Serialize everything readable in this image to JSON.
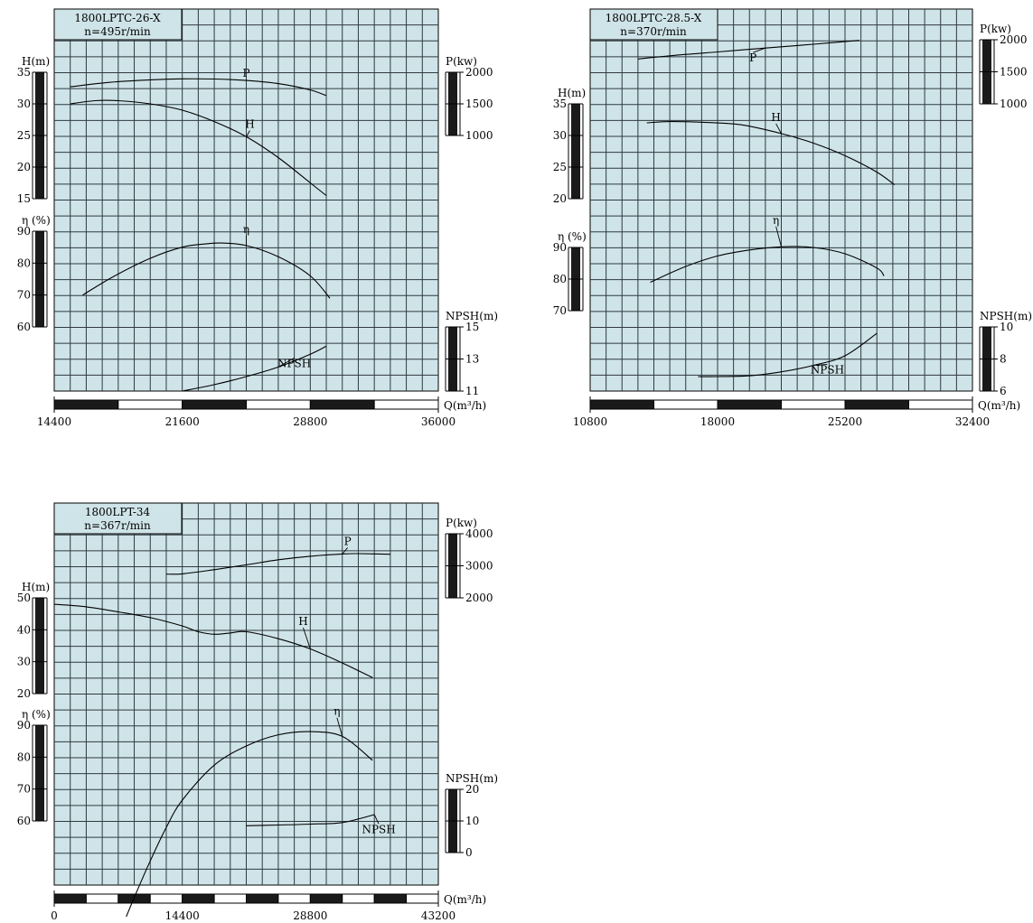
{
  "chart_data": [
    {
      "type": "line",
      "id": "c1",
      "title": "1800LPTC-26-X",
      "subtitle": "n=495r/min",
      "xlabel": "Q(m³/h)",
      "xlim": [
        14400,
        36000
      ],
      "xticks": [
        14400,
        21600,
        28800,
        36000
      ],
      "axes": {
        "H": {
          "label": "H(m)",
          "range": [
            15,
            35
          ],
          "ticks": [
            15,
            20,
            25,
            30,
            35
          ],
          "side": "left"
        },
        "eta": {
          "label": "η (%)",
          "range": [
            60,
            90
          ],
          "ticks": [
            60,
            70,
            80,
            90
          ],
          "side": "left"
        },
        "P": {
          "label": "P(kw)",
          "range": [
            1000,
            2000
          ],
          "ticks": [
            1000,
            1500,
            2000
          ],
          "side": "right"
        },
        "NPSH": {
          "label": "NPSH(m)",
          "range": [
            11,
            15
          ],
          "ticks": [
            11,
            13,
            15
          ],
          "side": "right"
        }
      },
      "series": [
        {
          "name": "P",
          "axis": "P",
          "x": [
            15300,
            17500,
            19800,
            21600,
            23400,
            25200,
            27000,
            28800,
            29700
          ],
          "y": [
            1770,
            1840,
            1880,
            1895,
            1893,
            1870,
            1820,
            1720,
            1630
          ],
          "label_at": [
            25200,
            1930
          ]
        },
        {
          "name": "H",
          "axis": "H",
          "x": [
            15300,
            16700,
            18000,
            19800,
            21600,
            23400,
            25200,
            27000,
            28800,
            29700
          ],
          "y": [
            30,
            30.5,
            30.5,
            30,
            29,
            27.2,
            24.8,
            21.5,
            17.5,
            15.5
          ],
          "label_at": [
            25400,
            26.2
          ]
        },
        {
          "name": "η",
          "axis": "eta",
          "x": [
            16000,
            17800,
            19800,
            21600,
            22900,
            23800,
            25200,
            27000,
            28800,
            29900
          ],
          "y": [
            70,
            76,
            81.5,
            85,
            86,
            86.3,
            85.5,
            82,
            76,
            69
          ],
          "label_at": [
            25200,
            89.4
          ]
        },
        {
          "name": "NPSH",
          "axis": "NPSH",
          "x": [
            21600,
            23400,
            25200,
            27000,
            28800,
            29700
          ],
          "y": [
            11,
            11.4,
            11.9,
            12.5,
            13.3,
            13.8
          ],
          "label_at": [
            27900,
            12.5
          ]
        }
      ]
    },
    {
      "type": "line",
      "id": "c2",
      "title": "1800LPTC-28.5-X",
      "subtitle": "n=370r/min",
      "xlabel": "Q(m³/h)",
      "xlim": [
        10800,
        32400
      ],
      "xticks": [
        10800,
        18000,
        25200,
        32400
      ],
      "axes": {
        "H": {
          "label": "H(m)",
          "range": [
            20,
            35
          ],
          "ticks": [
            20,
            25,
            30,
            35
          ],
          "side": "left"
        },
        "eta": {
          "label": "η (%)",
          "range": [
            70,
            90
          ],
          "ticks": [
            70,
            80,
            90
          ],
          "side": "left"
        },
        "P": {
          "label": "P(kw)",
          "range": [
            1000,
            2000
          ],
          "ticks": [
            1000,
            1500,
            2000
          ],
          "side": "right"
        },
        "NPSH": {
          "label": "NPSH(m)",
          "range": [
            6,
            10
          ],
          "ticks": [
            6,
            8,
            10
          ],
          "side": "right"
        }
      },
      "series": [
        {
          "name": "P",
          "axis": "P",
          "x": [
            13500,
            15300,
            18000,
            20700,
            23400,
            26000
          ],
          "y": [
            1700,
            1750,
            1810,
            1870,
            1930,
            1990
          ],
          "label_at": [
            20000,
            1660
          ]
        },
        {
          "name": "H",
          "axis": "H",
          "x": [
            14000,
            15300,
            17100,
            19300,
            21600,
            23400,
            25200,
            27000,
            28000
          ],
          "y": [
            32,
            32.2,
            32.1,
            31.7,
            30.3,
            28.8,
            26.8,
            24.2,
            22.2
          ],
          "label_at": [
            21300,
            32.3
          ]
        },
        {
          "name": "η",
          "axis": "eta",
          "x": [
            14200,
            16200,
            18000,
            19800,
            21600,
            23400,
            25200,
            27000,
            27400
          ],
          "y": [
            79,
            84,
            87.3,
            89.2,
            90.2,
            90,
            88,
            83.5,
            81
          ],
          "label_at": [
            21300,
            97.5
          ]
        },
        {
          "name": "NPSH",
          "axis": "NPSH",
          "x": [
            16900,
            18000,
            19800,
            21600,
            23400,
            25200,
            27000
          ],
          "y": [
            6.9,
            6.9,
            6.95,
            7.2,
            7.6,
            8.2,
            9.6
          ],
          "label_at": [
            24200,
            7.1
          ]
        }
      ]
    },
    {
      "type": "line",
      "id": "c3",
      "title": "1800LPT-34",
      "subtitle": "n=367r/min",
      "xlabel": "Q(m³/h)",
      "xlim": [
        0,
        43200
      ],
      "xticks": [
        0,
        14400,
        28800,
        43200
      ],
      "axes": {
        "H": {
          "label": "H(m)",
          "range": [
            20,
            50
          ],
          "ticks": [
            20,
            30,
            40,
            50
          ],
          "side": "left"
        },
        "eta": {
          "label": "η (%)",
          "range": [
            60,
            90
          ],
          "ticks": [
            60,
            70,
            80,
            90
          ],
          "side": "left"
        },
        "P": {
          "label": "P(kw)",
          "range": [
            2000,
            4000
          ],
          "ticks": [
            2000,
            3000,
            4000
          ],
          "side": "right"
        },
        "NPSH": {
          "label": "NPSH(m)",
          "range": [
            0,
            20
          ],
          "ticks": [
            0,
            10,
            20
          ],
          "side": "right"
        }
      },
      "series": [
        {
          "name": "P",
          "axis": "P",
          "x": [
            12600,
            14400,
            18000,
            21600,
            25200,
            28800,
            32400,
            34200,
            37800
          ],
          "y": [
            2740,
            2750,
            2880,
            3030,
            3190,
            3300,
            3370,
            3380,
            3360
          ],
          "label_at": [
            33000,
            3650
          ]
        },
        {
          "name": "H",
          "axis": "H",
          "x": [
            0,
            3600,
            7200,
            10800,
            14400,
            16200,
            18000,
            19800,
            21600,
            25200,
            28800,
            32400,
            35800
          ],
          "y": [
            48,
            47.2,
            45.6,
            43.8,
            41.2,
            39.4,
            38.6,
            39,
            39.4,
            37.2,
            34,
            29.6,
            25
          ],
          "label_at": [
            28000,
            41.5
          ]
        },
        {
          "name": "η",
          "axis": "eta",
          "x": [
            8100,
            9000,
            10800,
            12600,
            14400,
            18000,
            21600,
            25200,
            28800,
            32400,
            35800
          ],
          "y": [
            30,
            36,
            47.5,
            58,
            66.5,
            77.5,
            83.5,
            87,
            88,
            86.5,
            79
          ],
          "label_at": [
            31800,
            93.2
          ]
        },
        {
          "name": "NPSH",
          "axis": "NPSH",
          "x": [
            21600,
            25200,
            28800,
            32400,
            36000
          ],
          "y": [
            8.5,
            8.7,
            9,
            9.5,
            12
          ],
          "label_at": [
            36500,
            6.2
          ]
        }
      ]
    }
  ]
}
